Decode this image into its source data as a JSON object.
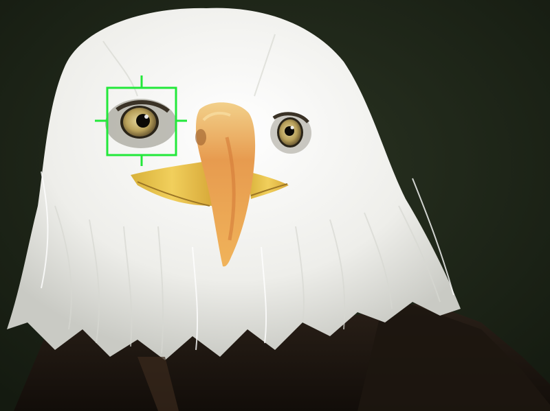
{
  "viewer": {
    "subject": "bald-eagle-portrait",
    "overlay": "eye-af-focus-box",
    "colors": {
      "background": "#1c2416",
      "focus_box": "#22e83a",
      "feather_white": "#f2f2f0",
      "beak_orange": "#e59448",
      "beak_yellow": "#e2b640",
      "eye_iris": "#b9a260",
      "body_dark": "#1a1410"
    }
  }
}
